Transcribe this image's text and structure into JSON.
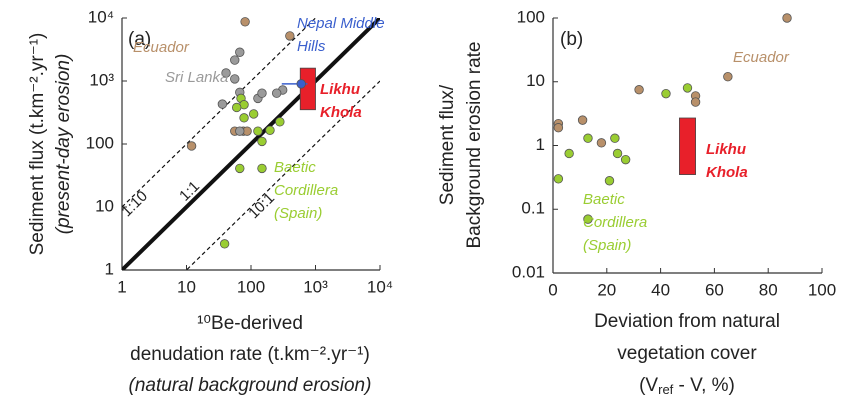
{
  "chart_data": [
    {
      "type": "scatter",
      "panel_label": "(a)",
      "log_x": true,
      "log_y": true,
      "xlim": [
        1,
        10000
      ],
      "ylim": [
        1,
        10000
      ],
      "xticks": [
        1,
        10,
        100,
        {
          "value": 1000,
          "label": "10³"
        },
        {
          "value": 10000,
          "label": "10⁴"
        }
      ],
      "yticks": [
        1,
        10,
        100,
        {
          "value": 1000,
          "label": "10³"
        },
        {
          "value": 10000,
          "label": "10⁴"
        }
      ],
      "xlabel": [
        "¹⁰Be-derived",
        "denudation rate (t.km⁻².yr⁻¹)",
        "(natural background erosion)"
      ],
      "ylabel": [
        "Sediment flux (t.km⁻².yr⁻¹)",
        "(present-day erosion)"
      ],
      "reference_lines": [
        {
          "label": "1:1",
          "style": "solid"
        },
        {
          "label": "1:10",
          "style": "dashed"
        },
        {
          "label": "10:1",
          "style": "dashed"
        }
      ],
      "series": [
        {
          "name": "Ecuador",
          "color": "#b8906a",
          "x": [
            81,
            400,
            12,
            56,
            76,
            87
          ],
          "values": [
            8700,
            5200,
            93,
            160,
            160,
            160
          ]
        },
        {
          "name": "Sri Lanka",
          "color": "#9a9a9a",
          "x": [
            41,
            56,
            67,
            56,
            67,
            67,
            128,
            148,
            310,
            250,
            36
          ],
          "values": [
            1340,
            2150,
            2860,
            1080,
            660,
            160,
            530,
            640,
            720,
            640,
            430
          ]
        },
        {
          "name": "Baetic Cordillera (Spain)",
          "color": "#9acd32",
          "x": [
            70,
            78,
            78,
            128,
            197,
            280,
            148,
            67,
            148,
            39,
            60,
            110
          ],
          "values": [
            530,
            420,
            260,
            160,
            165,
            225,
            110,
            41,
            41,
            2.6,
            380,
            300
          ]
        },
        {
          "name": "Nepal Middle Hills",
          "color": "#3a5fcd",
          "x": [
            600
          ],
          "values": [
            900
          ],
          "x_range": [
            [
              300,
              750
            ]
          ]
        }
      ],
      "boxes": [
        {
          "name": "Likhu Khola",
          "color": "#e8202a",
          "x": [
            580,
            1000
          ],
          "y": [
            350,
            1600
          ]
        }
      ]
    },
    {
      "type": "scatter",
      "panel_label": "(b)",
      "log_x": false,
      "log_y": true,
      "xlim": [
        0,
        100
      ],
      "ylim": [
        0.01,
        100
      ],
      "xticks": [
        0,
        20,
        40,
        60,
        80,
        100
      ],
      "yticks": [
        0.01,
        0.1,
        1,
        10,
        100
      ],
      "xlabel": [
        "Deviation from natural",
        "vegetation cover",
        "(Vref - V, %)"
      ],
      "ylabel": [
        "Sediment flux/",
        "Background erosion rate"
      ],
      "series": [
        {
          "name": "Ecuador",
          "color": "#b8906a",
          "x": [
            2,
            2,
            11,
            18,
            32,
            53,
            53,
            65,
            87
          ],
          "values": [
            2.2,
            1.9,
            2.5,
            1.1,
            7.5,
            6,
            4.8,
            12,
            100
          ]
        },
        {
          "name": "Baetic Cordillera (Spain)",
          "color": "#9acd32",
          "x": [
            2,
            6,
            13,
            23,
            24,
            27,
            21,
            13,
            42,
            50
          ],
          "values": [
            0.3,
            0.75,
            1.3,
            1.3,
            0.75,
            0.6,
            0.28,
            0.07,
            6.5,
            8
          ]
        }
      ],
      "boxes": [
        {
          "name": "Likhu Khola",
          "color": "#e8202a",
          "x": [
            47,
            53
          ],
          "y": [
            0.35,
            2.7
          ]
        }
      ]
    }
  ]
}
